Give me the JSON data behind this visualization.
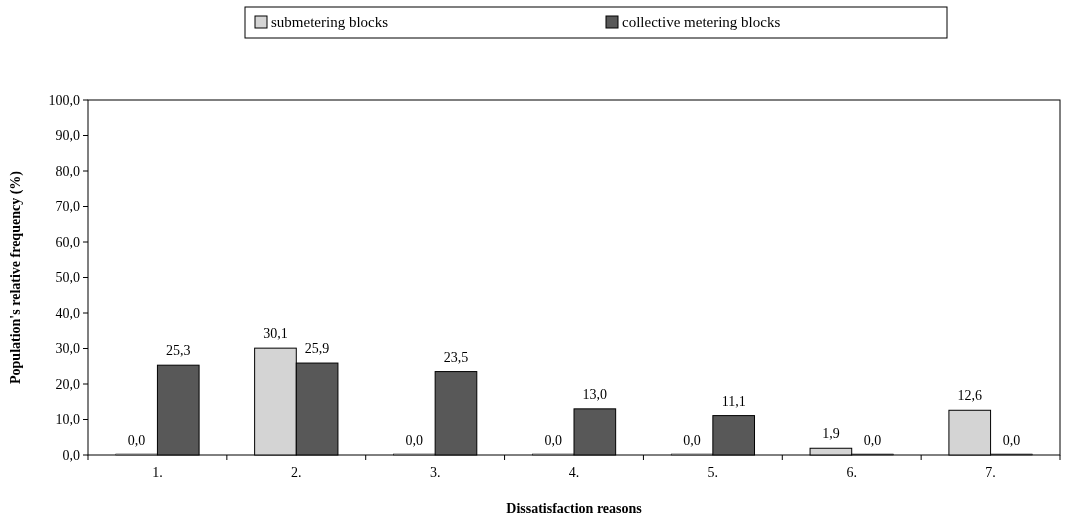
{
  "chart_data": {
    "type": "bar",
    "xlabel": "Dissatisfaction reasons",
    "ylabel": "Population's relative frequency (%)",
    "categories": [
      "1.",
      "2.",
      "3.",
      "4.",
      "5.",
      "6.",
      "7."
    ],
    "series": [
      {
        "name": "submetering blocks",
        "color": "#d4d4d4",
        "values": [
          0,
          30.1,
          0,
          0,
          0,
          1.9,
          12.6
        ],
        "value_labels": [
          "0,0",
          "30,1",
          "0,0",
          "0,0",
          "0,0",
          "1,9",
          "12,6"
        ]
      },
      {
        "name": "collective metering blocks",
        "color": "#585858",
        "values": [
          25.3,
          25.9,
          23.5,
          13,
          11.1,
          0,
          0
        ],
        "value_labels": [
          "25,3",
          "25,9",
          "23,5",
          "13,0",
          "11,1",
          "0,0",
          "0,0"
        ]
      }
    ],
    "ylim": [
      0,
      100
    ],
    "yticks": [
      {
        "value": 0,
        "label": "0,0"
      },
      {
        "value": 10,
        "label": "10,0"
      },
      {
        "value": 20,
        "label": "20,0"
      },
      {
        "value": 30,
        "label": "30,0"
      },
      {
        "value": 40,
        "label": "40,0"
      },
      {
        "value": 50,
        "label": "50,0"
      },
      {
        "value": 60,
        "label": "60,0"
      },
      {
        "value": 70,
        "label": "70,0"
      },
      {
        "value": 80,
        "label": "80,0"
      },
      {
        "value": 90,
        "label": "90,0"
      },
      {
        "value": 100,
        "label": "100,0"
      }
    ],
    "grid": false,
    "legend": "top"
  }
}
